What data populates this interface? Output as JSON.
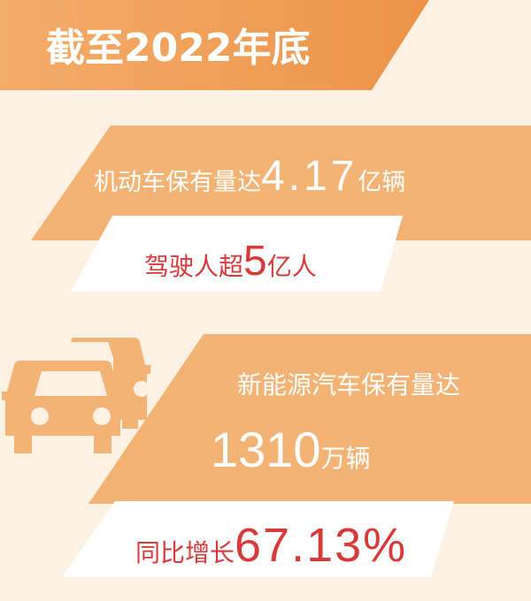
{
  "title": "截至2022年底",
  "motor_vehicles": {
    "label": "机动车保有量达",
    "value": "4.17",
    "unit": "亿辆"
  },
  "drivers": {
    "label": "驾驶人超",
    "value": "5",
    "unit": "亿人"
  },
  "nev": {
    "label": "新能源汽车保有量达",
    "value": "1310",
    "unit": "万辆"
  },
  "growth": {
    "label": "同比增长",
    "value": "67.13%"
  },
  "icons": [
    "car-icon"
  ],
  "colors": {
    "background": "#fcf1e3",
    "title_band": "#ee9a4e",
    "band": "#f3b374",
    "highlight_text": "#d83a3a",
    "white": "#ffffff"
  }
}
